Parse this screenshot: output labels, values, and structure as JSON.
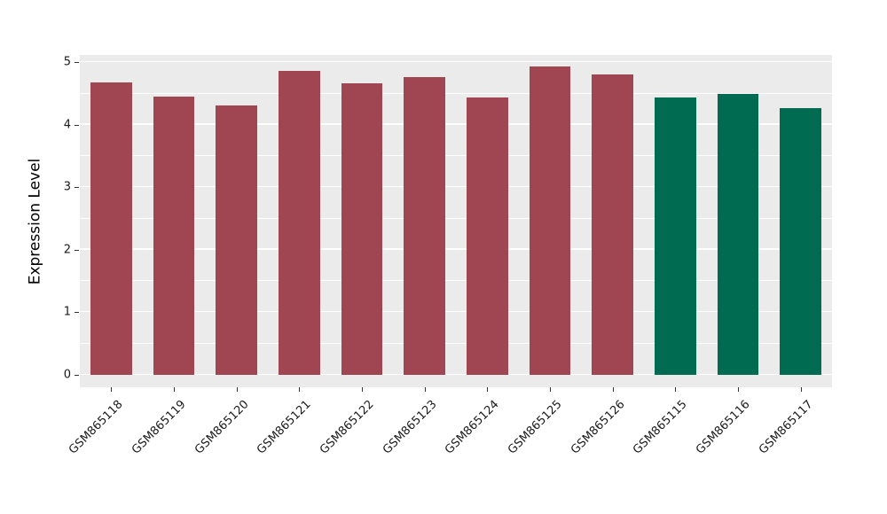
{
  "chart_data": {
    "type": "bar",
    "title": "",
    "xlabel": "",
    "ylabel": "Expression Level",
    "ylim": [
      0,
      5
    ],
    "yticks": [
      0,
      1,
      2,
      3,
      4,
      5
    ],
    "grid": "major-and-minor-white-on-gray",
    "legend_position": "none",
    "categories": [
      "GSM865118",
      "GSM865119",
      "GSM865120",
      "GSM865121",
      "GSM865122",
      "GSM865123",
      "GSM865124",
      "GSM865125",
      "GSM865126",
      "GSM865115",
      "GSM865116",
      "GSM865117"
    ],
    "values": [
      4.67,
      4.45,
      4.3,
      4.86,
      4.66,
      4.76,
      4.43,
      4.93,
      4.8,
      4.43,
      4.49,
      4.27
    ],
    "bar_colors": [
      "#A04552",
      "#A04552",
      "#A04552",
      "#A04552",
      "#A04552",
      "#A04552",
      "#A04552",
      "#A04552",
      "#A04552",
      "#006B50",
      "#006B50",
      "#006B50"
    ],
    "group_colors": {
      "red_group": "#A04552",
      "green_group": "#006B50"
    },
    "panel_bg": "#EBEBEB",
    "grid_color": "#FFFFFF",
    "tick_color": "#333333"
  }
}
